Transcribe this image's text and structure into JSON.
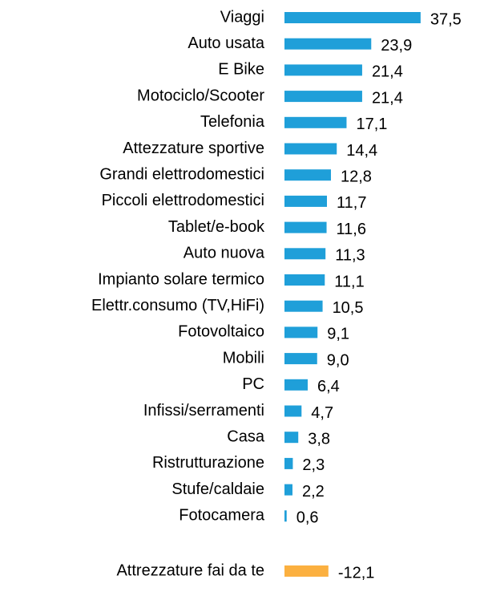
{
  "chart_data": {
    "type": "bar",
    "orientation": "horizontal",
    "categories": [
      "Viaggi",
      "Auto  usata",
      "E Bike",
      "Motociclo/Scooter",
      "Telefonia",
      "Attezzature sportive",
      "Grandi elettrodomestici",
      "Piccoli elettrodomestici",
      "Tablet/e-book",
      "Auto nuova",
      "Impianto solare termico",
      "Elettr.consumo (TV,HiFi)",
      "Fotovoltaico",
      "Mobili",
      "PC",
      "Infissi/serramenti",
      "Casa",
      "Ristrutturazione",
      "Stufe/caldaie",
      "Fotocamera",
      "Attrezzature fai da te"
    ],
    "values": [
      37.5,
      23.9,
      21.4,
      21.4,
      17.1,
      14.4,
      12.8,
      11.7,
      11.6,
      11.3,
      11.1,
      10.5,
      9.1,
      9.0,
      6.4,
      4.7,
      3.8,
      2.3,
      2.2,
      0.6,
      -12.1
    ],
    "value_labels": [
      "37,5",
      "23,9",
      "21,4",
      "21,4",
      "17,1",
      "14,4",
      "12,8",
      "11,7",
      "11,6",
      "11,3",
      "11,1",
      "10,5",
      "9,1",
      "9,0",
      "6,4",
      "4,7",
      "3,8",
      "2,3",
      "2,2",
      "0,6",
      "-12,1"
    ],
    "colors": [
      "#1f9fd9",
      "#1f9fd9",
      "#1f9fd9",
      "#1f9fd9",
      "#1f9fd9",
      "#1f9fd9",
      "#1f9fd9",
      "#1f9fd9",
      "#1f9fd9",
      "#1f9fd9",
      "#1f9fd9",
      "#1f9fd9",
      "#1f9fd9",
      "#1f9fd9",
      "#1f9fd9",
      "#1f9fd9",
      "#1f9fd9",
      "#1f9fd9",
      "#1f9fd9",
      "#1f9fd9",
      "#fbb040"
    ]
  }
}
